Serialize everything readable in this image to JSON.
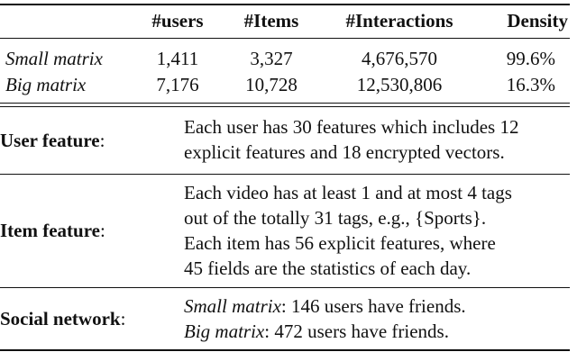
{
  "stats_table": {
    "headers": [
      "#users",
      "#Items",
      "#Interactions",
      "Density"
    ],
    "rows": [
      {
        "label": "Small matrix",
        "users": "1,411",
        "items": "3,327",
        "interactions": "4,676,570",
        "density": "99.6%"
      },
      {
        "label": "Big matrix",
        "users": "7,176",
        "items": "10,728",
        "interactions": "12,530,806",
        "density": "16.3%"
      }
    ]
  },
  "features": {
    "user": {
      "label": "User feature",
      "colon": ":",
      "lines": [
        "Each user has 30 features which includes 12",
        "explicit features and 18 encrypted vectors."
      ]
    },
    "item": {
      "label": "Item feature",
      "colon": ":",
      "lines": [
        "Each video has at least 1 and at most 4 tags",
        "out of the totally 31 tags, e.g., {Sports}.",
        "Each item has 56 explicit features, where",
        "45 fields are the statistics of each day."
      ]
    },
    "social": {
      "label": "Social network",
      "colon": ":",
      "lines": [
        {
          "em": "Small matrix",
          "rest": ": 146 users have friends."
        },
        {
          "em": "Big matrix",
          "rest": ": 472 users have friends."
        }
      ]
    }
  }
}
